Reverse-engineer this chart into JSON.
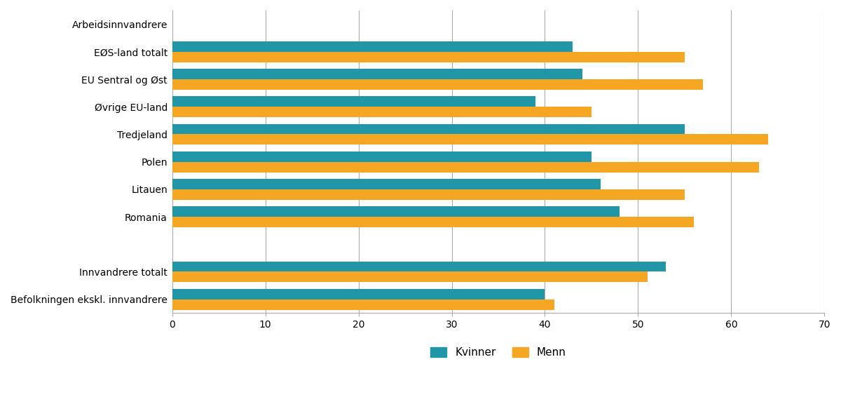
{
  "categories": [
    "Arbeidsinnvandrere",
    "EØS-land totalt",
    "EU Sentral og Øst",
    "Øvrige EU-land",
    "Tredjeland",
    "Polen",
    "Litauen",
    "Romania",
    "",
    "Innvandrere totalt",
    "Befolkningen ekskl. innvandrere"
  ],
  "kvinner": [
    null,
    43,
    44,
    39,
    55,
    45,
    46,
    48,
    null,
    53,
    40
  ],
  "menn": [
    null,
    55,
    57,
    45,
    64,
    63,
    55,
    56,
    null,
    51,
    41
  ],
  "color_kvinner": "#2196A6",
  "color_menn": "#F5A623",
  "xlim": [
    0,
    70
  ],
  "xticks": [
    0,
    10,
    20,
    30,
    40,
    50,
    60,
    70
  ],
  "legend_kvinner": "Kvinner",
  "legend_menn": "Menn",
  "bar_height": 0.38,
  "background_color": "#ffffff",
  "grid_color": "#aaaaaa"
}
